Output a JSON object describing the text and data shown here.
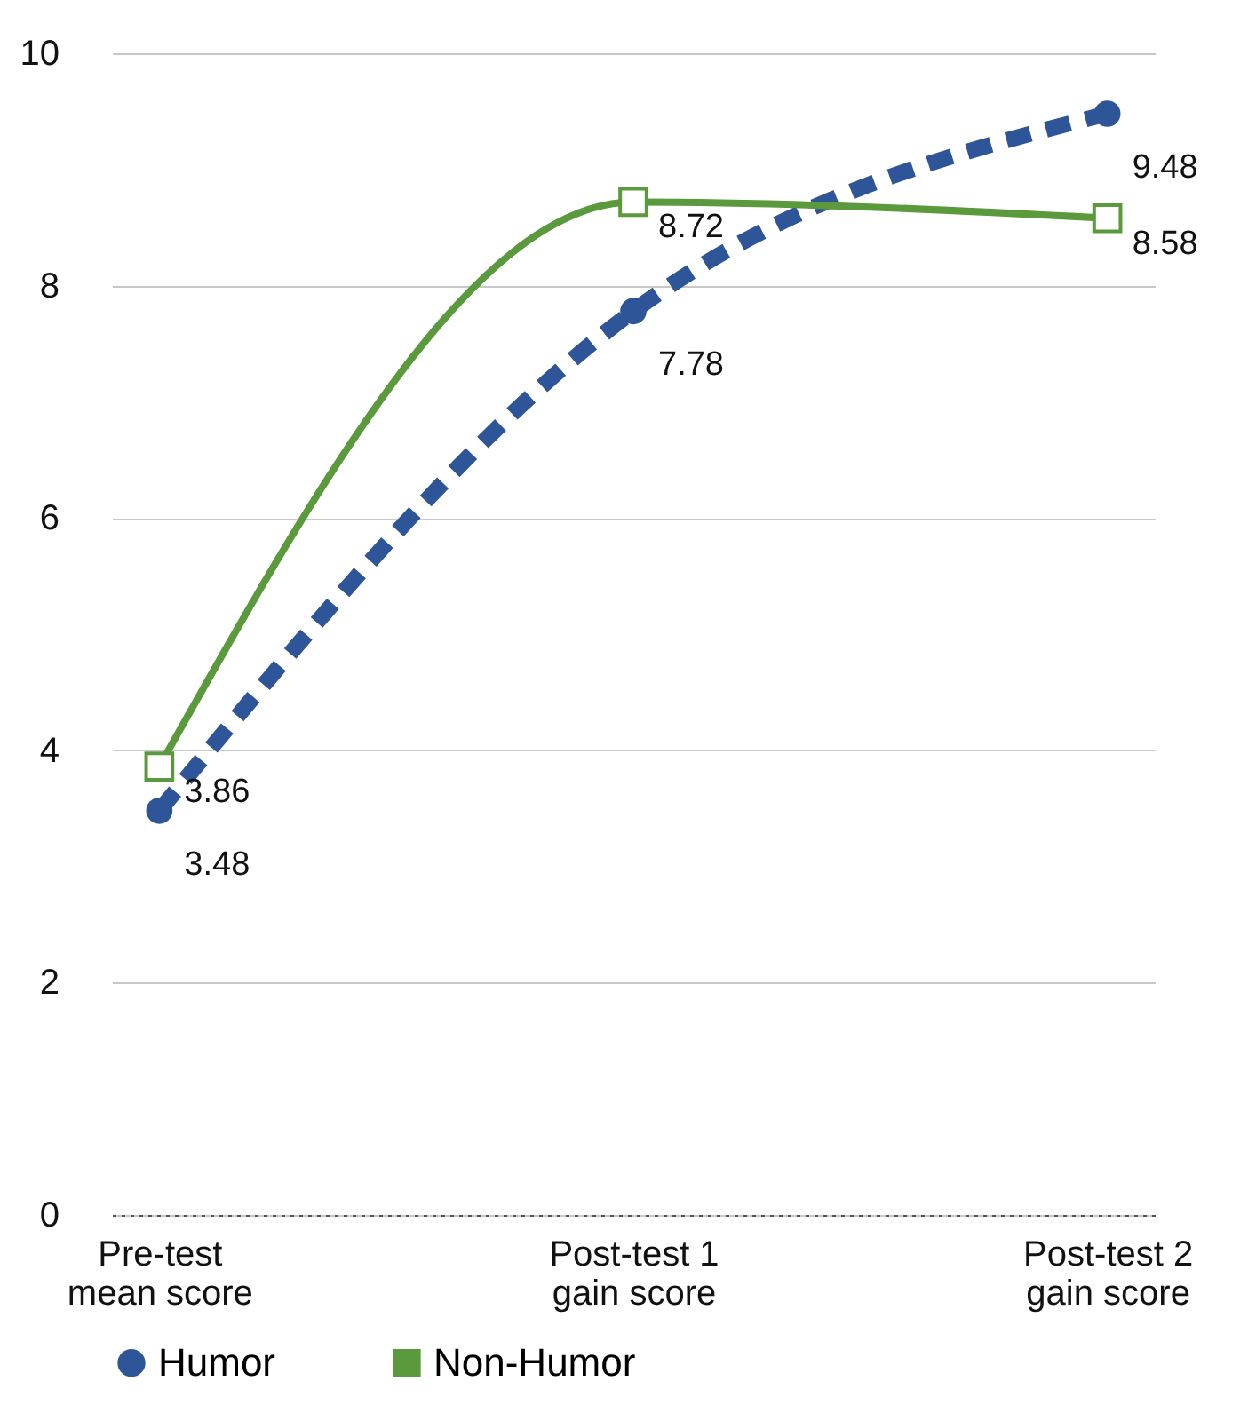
{
  "chart_data": {
    "type": "line",
    "categories": [
      "Pre-test\nmean score",
      "Post-test 1\ngain score",
      "Post-test 2\ngain score"
    ],
    "series": [
      {
        "name": "Humor",
        "color": "#2e5597",
        "values": [
          3.48,
          7.78,
          9.48
        ],
        "line_style": "dashed",
        "marker": "circle"
      },
      {
        "name": "Non-Humor",
        "color": "#5b9a3c",
        "values": [
          3.86,
          8.72,
          8.58
        ],
        "line_style": "solid",
        "marker": "square"
      }
    ],
    "ylim": [
      0,
      10
    ],
    "yticks": [
      0,
      2,
      4,
      6,
      8,
      10
    ],
    "grid": "y",
    "legend": "bottom",
    "data_labels": true
  }
}
